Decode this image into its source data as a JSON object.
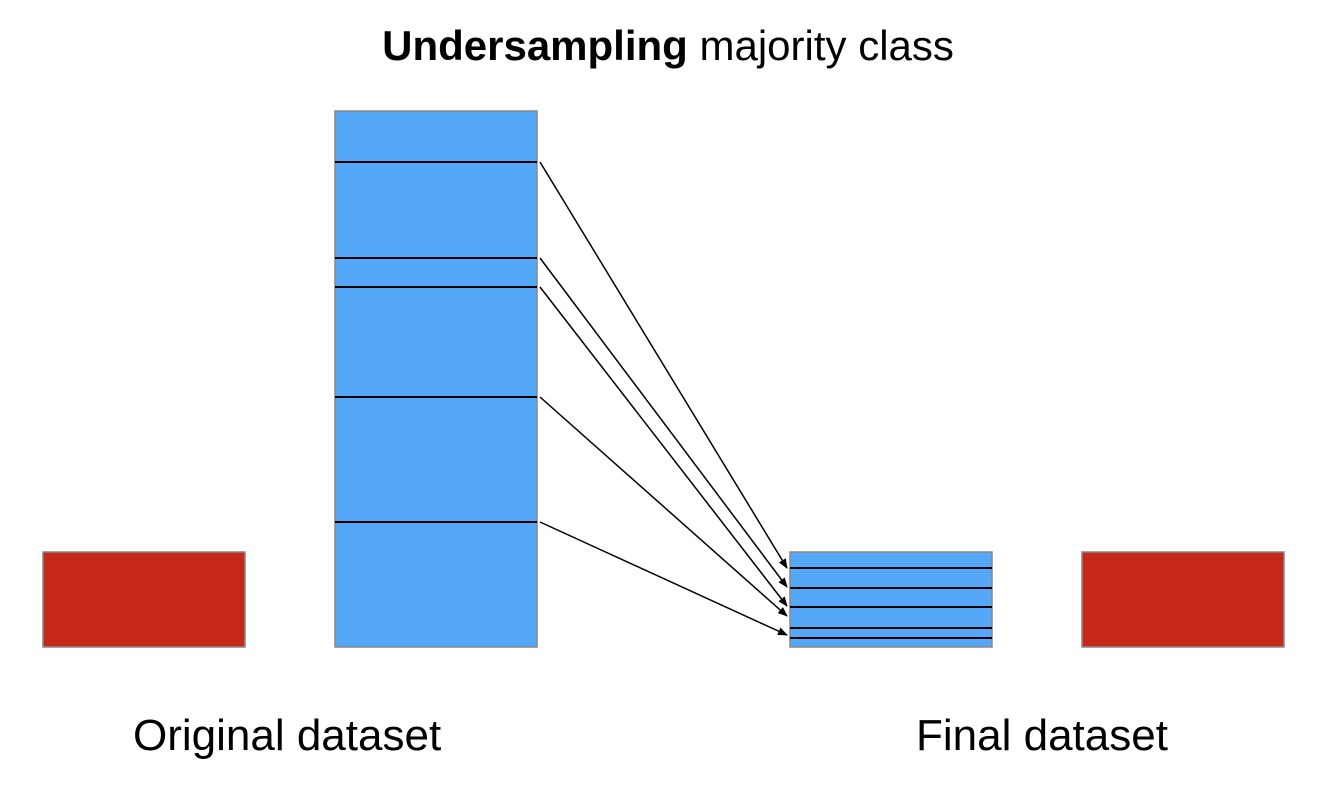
{
  "title": {
    "bold_part": "Undersampling",
    "regular_part": "majority class"
  },
  "labels": {
    "original": "Original dataset",
    "final": "Final dataset"
  },
  "colors": {
    "majority_class": "#55a8f8",
    "minority_class": "#c52818",
    "box_border": "#888888",
    "lines": "#000000"
  }
}
